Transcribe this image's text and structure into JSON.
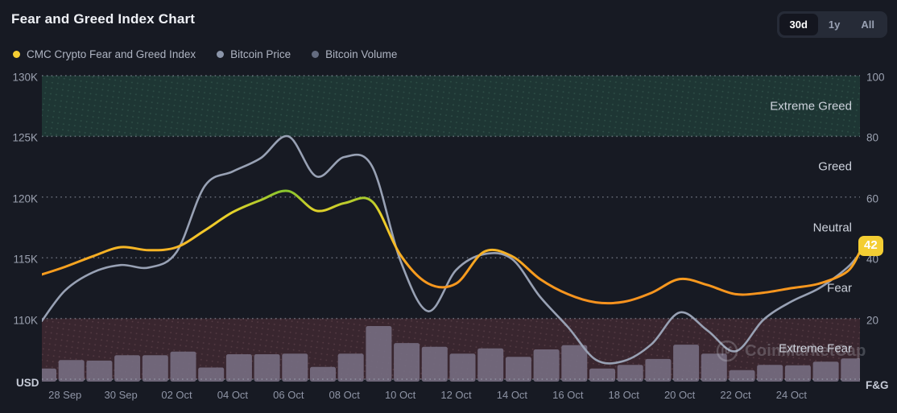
{
  "header": {
    "title": "Fear and Greed Index Chart",
    "legend": [
      {
        "label": "CMC Crypto Fear and Greed Index",
        "color": "#F5CE33"
      },
      {
        "label": "Bitcoin Price",
        "color": "#8B95A9"
      },
      {
        "label": "Bitcoin Volume",
        "color": "#646C80"
      }
    ],
    "ranges": [
      {
        "label": "30d",
        "active": true
      },
      {
        "label": "1y",
        "active": false
      },
      {
        "label": "All",
        "active": false
      }
    ]
  },
  "axes": {
    "left_unit": "USD",
    "right_unit": "F&G",
    "left_ticks": [
      {
        "label": "130K",
        "value": 100
      },
      {
        "label": "125K",
        "value": 80
      },
      {
        "label": "120K",
        "value": 60
      },
      {
        "label": "115K",
        "value": 40
      },
      {
        "label": "110K",
        "value": 20
      }
    ],
    "right_ticks": [
      {
        "label": "100",
        "value": 100
      },
      {
        "label": "80",
        "value": 80
      },
      {
        "label": "60",
        "value": 60
      },
      {
        "label": "40",
        "value": 40
      },
      {
        "label": "20",
        "value": 20
      }
    ],
    "x_ticks": [
      {
        "label": "28 Sep",
        "day": 1
      },
      {
        "label": "30 Sep",
        "day": 3
      },
      {
        "label": "02 Oct",
        "day": 5
      },
      {
        "label": "04 Oct",
        "day": 7
      },
      {
        "label": "06 Oct",
        "day": 9
      },
      {
        "label": "08 Oct",
        "day": 11
      },
      {
        "label": "10 Oct",
        "day": 13
      },
      {
        "label": "12 Oct",
        "day": 15
      },
      {
        "label": "14 Oct",
        "day": 17
      },
      {
        "label": "16 Oct",
        "day": 19
      },
      {
        "label": "18 Oct",
        "day": 21
      },
      {
        "label": "20 Oct",
        "day": 23
      },
      {
        "label": "22 Oct",
        "day": 25
      },
      {
        "label": "24 Oct",
        "day": 27
      }
    ]
  },
  "zones": [
    {
      "label": "Extreme Greed",
      "from": 80,
      "to": 100,
      "band": true,
      "fill": "#1E3634",
      "dot": "#6FB391"
    },
    {
      "label": "Greed",
      "from": 60,
      "to": 80,
      "band": false,
      "fill": "",
      "dot": ""
    },
    {
      "label": "Neutral",
      "from": 40,
      "to": 60,
      "band": false,
      "fill": "",
      "dot": ""
    },
    {
      "label": "Fear",
      "from": 20,
      "to": 40,
      "band": false,
      "fill": "",
      "dot": ""
    },
    {
      "label": "Extreme Fear",
      "from": 0,
      "to": 20,
      "band": true,
      "fill": "#39262F",
      "dot": "#B98793"
    }
  ],
  "chart_data": {
    "type": "line+bar",
    "title": "Fear and Greed Index Chart",
    "fg_axis": {
      "min": 0,
      "max": 100
    },
    "usd_axis": {
      "min": 105000,
      "max": 130000
    },
    "dates": [
      "27 Sep",
      "28 Sep",
      "29 Sep",
      "30 Sep",
      "01 Oct",
      "02 Oct",
      "03 Oct",
      "04 Oct",
      "05 Oct",
      "06 Oct",
      "07 Oct",
      "08 Oct",
      "09 Oct",
      "10 Oct",
      "11 Oct",
      "12 Oct",
      "13 Oct",
      "14 Oct",
      "15 Oct",
      "16 Oct",
      "17 Oct",
      "18 Oct",
      "19 Oct",
      "20 Oct",
      "21 Oct",
      "22 Oct",
      "23 Oct",
      "24 Oct",
      "25 Oct",
      "26 Oct"
    ],
    "series": [
      {
        "name": "CMC Crypto Fear and Greed Index",
        "type": "line",
        "axis": "fg",
        "color_scale": [
          "#84C42E",
          "#E8D22A",
          "#F5C52A",
          "#F79C1E",
          "#F68B1F"
        ],
        "values": [
          34.5,
          37,
          40.5,
          43.5,
          42.5,
          43.5,
          49,
          55,
          59,
          62,
          55.5,
          58,
          58.5,
          41,
          31.5,
          31.5,
          42,
          40.5,
          33,
          28,
          25.3,
          25.5,
          28.5,
          33,
          31,
          28,
          28.5,
          30,
          31.5,
          35.5
        ],
        "current": 42
      },
      {
        "name": "Bitcoin Price",
        "type": "line",
        "axis": "usd_k",
        "color": "#98A1B4",
        "values": [
          109.8,
          112.3,
          113.8,
          114.4,
          114.2,
          115.5,
          120.9,
          122.1,
          123.2,
          125.0,
          121.7,
          123.3,
          122.5,
          114.8,
          110.6,
          114.0,
          115.3,
          114.9,
          111.8,
          109.3,
          106.6,
          106.5,
          107.9,
          110.5,
          109.0,
          107.3,
          109.9,
          111.4,
          112.5,
          114.2
        ],
        "current": 115.4
      },
      {
        "name": "Bitcoin Volume",
        "type": "bar",
        "axis": "relative",
        "color": "#756C80",
        "values": [
          0.2,
          0.36,
          0.35,
          0.45,
          0.45,
          0.52,
          0.22,
          0.47,
          0.47,
          0.48,
          0.23,
          0.48,
          1.0,
          0.68,
          0.61,
          0.48,
          0.58,
          0.42,
          0.56,
          0.64,
          0.2,
          0.27,
          0.38,
          0.65,
          0.48,
          0.17,
          0.27,
          0.26,
          0.33,
          0.39
        ]
      }
    ]
  },
  "badge": {
    "value": "42",
    "bg": "#F4CE33"
  },
  "watermark": {
    "text": "CoinMarketCap"
  },
  "colors": {
    "background": "#171A23",
    "gridline": "#A7ADBB",
    "extreme_greed_band": "#1E3634",
    "extreme_fear_band": "#39262F",
    "volume_bar": "#756C80",
    "price_line": "#98A1B4",
    "fg_badge": "#F4CE33"
  }
}
